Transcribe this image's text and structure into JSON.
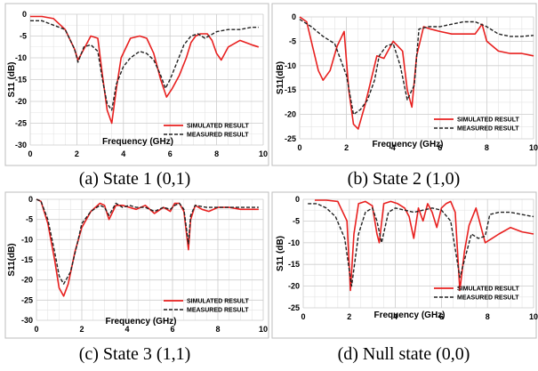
{
  "colors": {
    "simulated": "#e8201f",
    "measured": "#222222",
    "grid": "#e4e4e4",
    "frame": "#bdbdbd"
  },
  "chart_data": [
    {
      "type": "line",
      "caption": "(a) State 1 (0,1)",
      "xlabel": "Frequency (GHz)",
      "ylabel": "S11 (dB)",
      "xlim": [
        0,
        10
      ],
      "ylim": [
        -30,
        0
      ],
      "xticks": [
        0,
        2,
        4,
        6,
        8,
        10
      ],
      "yticks": [
        0,
        -5,
        -10,
        -15,
        -20,
        -25,
        -30
      ],
      "legend_position": "bottom-right",
      "grid": true,
      "series": [
        {
          "name": "SIMULATED RESULT",
          "style": "solid",
          "x": [
            0,
            0.5,
            1.0,
            1.5,
            1.9,
            2.05,
            2.3,
            2.6,
            2.9,
            3.1,
            3.3,
            3.5,
            3.7,
            3.9,
            4.3,
            4.7,
            5.0,
            5.3,
            5.6,
            5.85,
            6.1,
            6.4,
            6.7,
            6.9,
            7.1,
            7.3,
            7.6,
            7.8,
            8.0,
            8.2,
            8.5,
            9.0,
            9.5,
            9.8
          ],
          "y": [
            -0.5,
            -0.5,
            -1.0,
            -3.5,
            -8.0,
            -10.5,
            -8.0,
            -5.0,
            -5.5,
            -14.0,
            -22.0,
            -25.0,
            -17.0,
            -10.0,
            -5.5,
            -5.0,
            -5.5,
            -9.0,
            -15.0,
            -19.0,
            -17.0,
            -14.0,
            -10.0,
            -6.5,
            -5.0,
            -4.5,
            -4.5,
            -6.0,
            -9.0,
            -10.5,
            -7.5,
            -6.0,
            -7.0,
            -7.5
          ]
        },
        {
          "name": "MEASURED RESULT",
          "style": "dashed",
          "x": [
            0,
            0.5,
            1.0,
            1.5,
            1.9,
            2.05,
            2.3,
            2.6,
            2.9,
            3.1,
            3.3,
            3.5,
            3.7,
            4.0,
            4.3,
            4.7,
            5.0,
            5.3,
            5.6,
            5.8,
            6.0,
            6.3,
            6.6,
            6.9,
            7.2,
            7.5,
            8.0,
            8.5,
            9.0,
            9.5,
            9.8
          ],
          "y": [
            -1.5,
            -1.5,
            -2.5,
            -3.5,
            -8.0,
            -11.0,
            -7.5,
            -7.0,
            -8.5,
            -15.0,
            -20.5,
            -22.0,
            -16.0,
            -12.0,
            -10.0,
            -8.5,
            -9.0,
            -10.5,
            -14.0,
            -17.0,
            -15.0,
            -11.0,
            -7.0,
            -5.0,
            -4.5,
            -5.5,
            -4.0,
            -3.5,
            -3.5,
            -3.0,
            -3.0
          ]
        }
      ]
    },
    {
      "type": "line",
      "caption": "(b) State 2 (1,0)",
      "xlabel": "Frequency (GHz)",
      "ylabel": "S11(dB)",
      "xlim": [
        0,
        10
      ],
      "ylim": [
        -25,
        0
      ],
      "xticks": [
        0,
        2,
        4,
        6,
        8,
        10
      ],
      "yticks": [
        0,
        -5,
        -10,
        -15,
        -20,
        -25
      ],
      "legend_position": "bottom-right",
      "grid": true,
      "series": [
        {
          "name": "SIMULATED RESULT",
          "style": "solid",
          "x": [
            0,
            0.3,
            0.5,
            0.8,
            1.0,
            1.3,
            1.6,
            1.9,
            2.1,
            2.3,
            2.5,
            2.8,
            3.1,
            3.3,
            3.6,
            4.0,
            4.4,
            4.6,
            4.8,
            5.0,
            5.3,
            5.6,
            6.0,
            6.5,
            7.0,
            7.5,
            7.8,
            8.0,
            8.5,
            9.0,
            9.5,
            10
          ],
          "y": [
            0,
            -1.0,
            -5.0,
            -11.0,
            -13.0,
            -11.0,
            -6.0,
            -3.0,
            -15.0,
            -22.0,
            -23.0,
            -18.0,
            -12.0,
            -8.0,
            -8.5,
            -5.0,
            -7.0,
            -15.0,
            -18.5,
            -8.0,
            -2.0,
            -2.5,
            -3.0,
            -3.5,
            -3.5,
            -3.5,
            -1.5,
            -5.0,
            -7.0,
            -7.5,
            -7.5,
            -8.0
          ]
        },
        {
          "name": "MEASURED RESULT",
          "style": "dashed",
          "x": [
            0,
            0.5,
            1.0,
            1.5,
            2.0,
            2.3,
            2.6,
            2.9,
            3.2,
            3.4,
            3.7,
            4.0,
            4.3,
            4.6,
            4.9,
            5.1,
            5.5,
            6.0,
            6.5,
            7.0,
            7.5,
            8.0,
            8.5,
            9.0,
            9.5,
            10
          ],
          "y": [
            -0.5,
            -2.0,
            -4.0,
            -5.5,
            -12.0,
            -20.0,
            -19.0,
            -17.0,
            -13.0,
            -8.0,
            -6.0,
            -5.5,
            -10.0,
            -17.0,
            -14.0,
            -2.5,
            -2.0,
            -2.0,
            -1.5,
            -1.0,
            -1.0,
            -2.0,
            -3.5,
            -4.0,
            -4.0,
            -3.8
          ]
        }
      ]
    },
    {
      "type": "line",
      "caption": "(c) State 3 (1,1)",
      "xlabel": "Frequency (GHz)",
      "ylabel": "S11(dB)",
      "xlim": [
        0,
        10
      ],
      "ylim": [
        -30,
        0
      ],
      "xticks": [
        0,
        2,
        4,
        6,
        8,
        10
      ],
      "yticks": [
        0,
        -5,
        -10,
        -15,
        -20,
        -25,
        -30
      ],
      "legend_position": "bottom-right",
      "grid": true,
      "series": [
        {
          "name": "SIMULATED RESULT",
          "style": "solid",
          "x": [
            0,
            0.2,
            0.5,
            0.8,
            1.0,
            1.2,
            1.4,
            1.7,
            2.0,
            2.4,
            2.8,
            3.0,
            3.2,
            3.5,
            3.8,
            4.1,
            4.4,
            4.8,
            5.2,
            5.6,
            5.9,
            6.1,
            6.3,
            6.5,
            6.7,
            6.8,
            7.0,
            7.3,
            7.6,
            8.0,
            8.5,
            9.0,
            9.8
          ],
          "y": [
            0,
            -0.5,
            -6.0,
            -15.0,
            -22.0,
            -24.0,
            -21.0,
            -13.0,
            -7.0,
            -3.0,
            -1.0,
            -1.5,
            -5.0,
            -1.5,
            -1.5,
            -2.0,
            -2.5,
            -1.5,
            -3.5,
            -2.0,
            -3.0,
            -1.0,
            -1.0,
            -3.0,
            -12.5,
            -5.0,
            -1.5,
            -2.5,
            -3.0,
            -2.0,
            -2.0,
            -2.5,
            -2.5
          ]
        },
        {
          "name": "MEASURED RESULT",
          "style": "dashed",
          "x": [
            0,
            0.2,
            0.5,
            0.8,
            1.0,
            1.2,
            1.5,
            1.8,
            2.0,
            2.4,
            2.8,
            3.0,
            3.2,
            3.5,
            3.8,
            4.1,
            4.4,
            4.8,
            5.2,
            5.6,
            5.9,
            6.1,
            6.3,
            6.5,
            6.7,
            6.8,
            7.0,
            7.5,
            8.0,
            8.5,
            9.0,
            9.8
          ],
          "y": [
            0,
            -0.5,
            -5.0,
            -13.0,
            -19.0,
            -21.0,
            -18.0,
            -11.0,
            -6.0,
            -3.0,
            -1.5,
            -2.0,
            -4.0,
            -1.0,
            -2.0,
            -1.5,
            -2.0,
            -2.0,
            -3.0,
            -2.0,
            -2.5,
            -1.5,
            -1.0,
            -2.5,
            -11.0,
            -4.0,
            -1.5,
            -2.0,
            -2.0,
            -2.0,
            -2.0,
            -2.0
          ]
        }
      ]
    },
    {
      "type": "line",
      "caption": "(d) Null state (0,0)",
      "xlabel": "Frequency (GHz)",
      "ylabel": "S11 (dB)",
      "xlim": [
        0,
        10
      ],
      "ylim": [
        -25,
        0
      ],
      "xticks": [
        0,
        2,
        4,
        6,
        8,
        10
      ],
      "yticks": [
        0,
        -5,
        -10,
        -15,
        -20,
        -25
      ],
      "legend_position": "bottom-right",
      "grid": true,
      "series": [
        {
          "name": "SIMULATED RESULT",
          "style": "solid",
          "x": [
            0.5,
            1.0,
            1.5,
            1.9,
            2.05,
            2.2,
            2.4,
            2.7,
            3.0,
            3.2,
            3.3,
            3.5,
            3.8,
            4.1,
            4.4,
            4.6,
            4.8,
            5.0,
            5.2,
            5.4,
            5.6,
            5.8,
            6.0,
            6.2,
            6.4,
            6.6,
            6.8,
            7.0,
            7.2,
            7.5,
            7.7,
            7.9,
            8.2,
            8.5,
            9.0,
            9.5,
            10
          ],
          "y": [
            -0.2,
            -0.2,
            -0.5,
            -5.0,
            -21.0,
            -8.0,
            -1.0,
            -0.5,
            -1.5,
            -8.0,
            -10.0,
            -1.0,
            -0.5,
            -1.0,
            -2.0,
            -4.0,
            -9.0,
            -2.0,
            -5.0,
            -1.0,
            -3.0,
            -6.5,
            -2.0,
            -1.0,
            -0.5,
            -3.0,
            -21.0,
            -12.0,
            -6.0,
            -2.0,
            -6.0,
            -10.0,
            -9.0,
            -8.0,
            -6.5,
            -7.5,
            -8.0
          ]
        },
        {
          "name": "MEASURED RESULT",
          "style": "dashed",
          "x": [
            0.2,
            0.6,
            1.0,
            1.4,
            1.8,
            2.1,
            2.4,
            2.7,
            3.0,
            3.2,
            3.4,
            3.7,
            4.0,
            4.4,
            4.8,
            5.2,
            5.6,
            6.0,
            6.4,
            6.8,
            7.0,
            7.3,
            7.6,
            7.9,
            8.1,
            8.5,
            9.0,
            9.5,
            10
          ],
          "y": [
            -1.0,
            -1.0,
            -2.0,
            -4.0,
            -9.0,
            -20.0,
            -8.0,
            -3.0,
            -2.0,
            -5.0,
            -10.0,
            -3.0,
            -2.0,
            -2.5,
            -3.0,
            -2.5,
            -2.0,
            -2.5,
            -5.0,
            -18.0,
            -14.0,
            -8.0,
            -9.0,
            -8.5,
            -3.5,
            -3.0,
            -3.0,
            -3.5,
            -4.0
          ]
        }
      ]
    }
  ]
}
